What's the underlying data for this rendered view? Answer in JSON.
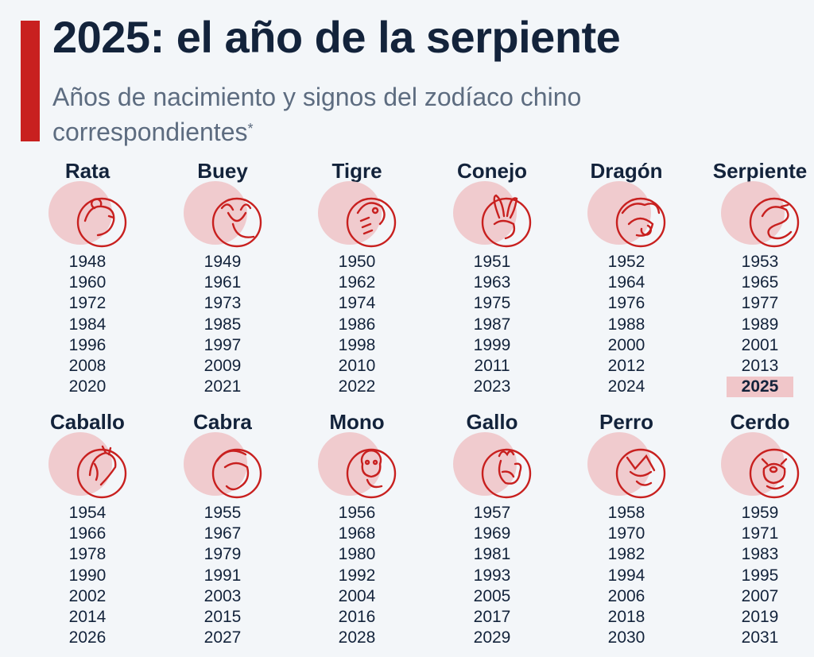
{
  "title": "2025: el año de la serpiente",
  "subtitle": "Años de nacimiento y signos del zodíaco chino correspondientes",
  "footnote_mark": "*",
  "colors": {
    "accent": "#c8201f",
    "icon_stroke": "#c8201f",
    "circle": "#f0c6c9",
    "text": "#13233b"
  },
  "highlight_year": "2025",
  "animals": [
    {
      "name": "Rata",
      "icon": "rat-icon",
      "years": [
        "1948",
        "1960",
        "1972",
        "1984",
        "1996",
        "2008",
        "2020"
      ]
    },
    {
      "name": "Buey",
      "icon": "ox-icon",
      "years": [
        "1949",
        "1961",
        "1973",
        "1985",
        "1997",
        "2009",
        "2021"
      ]
    },
    {
      "name": "Tigre",
      "icon": "tiger-icon",
      "years": [
        "1950",
        "1962",
        "1974",
        "1986",
        "1998",
        "2010",
        "2022"
      ]
    },
    {
      "name": "Conejo",
      "icon": "rabbit-icon",
      "years": [
        "1951",
        "1963",
        "1975",
        "1987",
        "1999",
        "2011",
        "2023"
      ]
    },
    {
      "name": "Dragón",
      "icon": "dragon-icon",
      "years": [
        "1952",
        "1964",
        "1976",
        "1988",
        "2000",
        "2012",
        "2024"
      ]
    },
    {
      "name": "Serpiente",
      "icon": "snake-icon",
      "years": [
        "1953",
        "1965",
        "1977",
        "1989",
        "2001",
        "2013",
        "2025"
      ]
    },
    {
      "name": "Caballo",
      "icon": "horse-icon",
      "years": [
        "1954",
        "1966",
        "1978",
        "1990",
        "2002",
        "2014",
        "2026"
      ]
    },
    {
      "name": "Cabra",
      "icon": "goat-icon",
      "years": [
        "1955",
        "1967",
        "1979",
        "1991",
        "2003",
        "2015",
        "2027"
      ]
    },
    {
      "name": "Mono",
      "icon": "monkey-icon",
      "years": [
        "1956",
        "1968",
        "1980",
        "1992",
        "2004",
        "2016",
        "2028"
      ]
    },
    {
      "name": "Gallo",
      "icon": "rooster-icon",
      "years": [
        "1957",
        "1969",
        "1981",
        "1993",
        "2005",
        "2017",
        "2029"
      ]
    },
    {
      "name": "Perro",
      "icon": "dog-icon",
      "years": [
        "1958",
        "1970",
        "1982",
        "1994",
        "2006",
        "2018",
        "2030"
      ]
    },
    {
      "name": "Cerdo",
      "icon": "pig-icon",
      "years": [
        "1959",
        "1971",
        "1983",
        "1995",
        "2007",
        "2019",
        "2031"
      ]
    }
  ]
}
